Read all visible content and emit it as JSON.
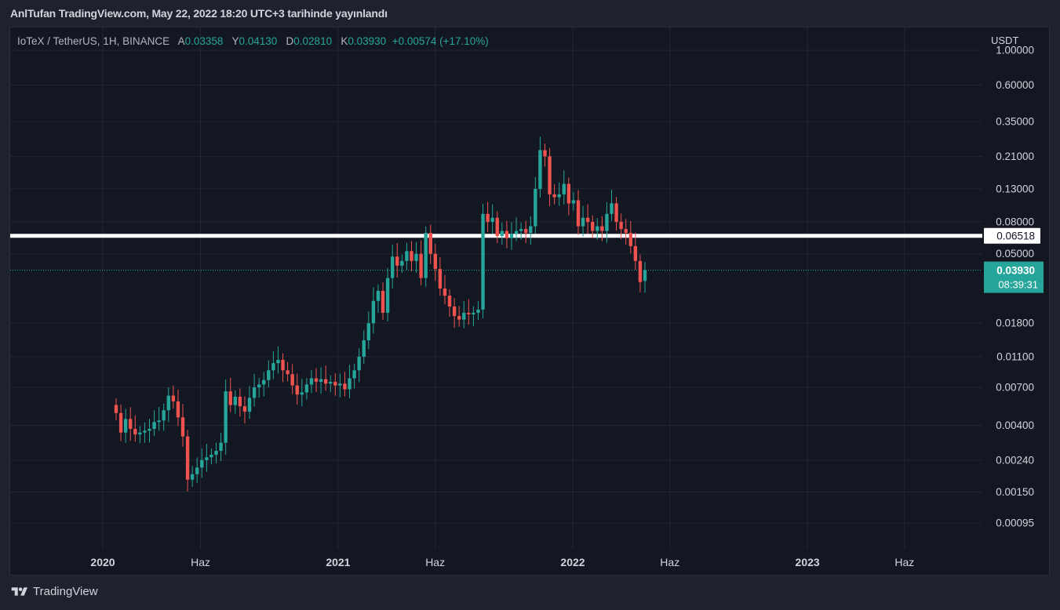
{
  "caption": "AnlTufan TradingView.com, May 22, 2022 18:20 UTC+3 tarihinde yayınlandı",
  "legend": {
    "symbol": "IoTeX / TetherUS, 1H, BINANCE",
    "open_label": "A",
    "open": "0.03358",
    "high_label": "Y",
    "high": "0.04130",
    "low_label": "D",
    "low": "0.02810",
    "close_label": "K",
    "close": "0.03930",
    "change": "+0.00574 (+17.10%)"
  },
  "brand": "TradingView",
  "colors": {
    "up": "#26a69a",
    "down": "#ef5350",
    "background": "#131722",
    "grid": "#232733",
    "text": "#d1d4dc",
    "hline": "#ffffff"
  },
  "chart_data": {
    "type": "candlestick",
    "scale": "log",
    "y_axis_unit": "USDT",
    "ylim": [
      0.00065,
      1.4
    ],
    "y_ticks": [
      "1.00000",
      "0.60000",
      "0.35000",
      "0.21000",
      "0.13000",
      "0.08000",
      "0.05000",
      "0.01800",
      "0.01100",
      "0.00700",
      "0.00400",
      "0.00240",
      "0.00150",
      "0.00095"
    ],
    "x_ticks": [
      {
        "date": "2020-01-01",
        "label": "2020"
      },
      {
        "date": "2020-06-01",
        "label": "Haz"
      },
      {
        "date": "2021-01-01",
        "label": "2021"
      },
      {
        "date": "2021-06-01",
        "label": "Haz"
      },
      {
        "date": "2022-01-01",
        "label": "2022"
      },
      {
        "date": "2022-06-01",
        "label": "Haz"
      },
      {
        "date": "2023-01-01",
        "label": "2023"
      },
      {
        "date": "2023-06-01",
        "label": "Haz"
      }
    ],
    "xlim": [
      "2019-08-10",
      "2023-09-30"
    ],
    "horizontal_line": {
      "value": "0.06518"
    },
    "last_price": {
      "value": "0.03930",
      "countdown": "08:39:31"
    },
    "series": [
      [
        0.0054,
        0.0048
      ],
      [
        0.0048,
        0.0036
      ],
      [
        0.0036,
        0.0044
      ],
      [
        0.0044,
        0.0038
      ],
      [
        0.0038,
        0.0035
      ],
      [
        0.0035,
        0.0036
      ],
      [
        0.0036,
        0.0037
      ],
      [
        0.0037,
        0.0038
      ],
      [
        0.0038,
        0.0042
      ],
      [
        0.0042,
        0.0043
      ],
      [
        0.0043,
        0.005
      ],
      [
        0.005,
        0.0062
      ],
      [
        0.0062,
        0.0057
      ],
      [
        0.0057,
        0.0045
      ],
      [
        0.0045,
        0.0034
      ],
      [
        0.0034,
        0.0018
      ],
      [
        0.0018,
        0.00195
      ],
      [
        0.00195,
        0.00215
      ],
      [
        0.00215,
        0.0024
      ],
      [
        0.0024,
        0.0025
      ],
      [
        0.0025,
        0.0026
      ],
      [
        0.0026,
        0.00275
      ],
      [
        0.00275,
        0.0031
      ],
      [
        0.0031,
        0.0066
      ],
      [
        0.0066,
        0.0054
      ],
      [
        0.0054,
        0.0061
      ],
      [
        0.0061,
        0.0053
      ],
      [
        0.0053,
        0.0049
      ],
      [
        0.0049,
        0.006
      ],
      [
        0.006,
        0.007
      ],
      [
        0.007,
        0.0073
      ],
      [
        0.0073,
        0.0078
      ],
      [
        0.0078,
        0.009
      ],
      [
        0.009,
        0.01
      ],
      [
        0.01,
        0.0105
      ],
      [
        0.0105,
        0.009
      ],
      [
        0.009,
        0.0085
      ],
      [
        0.0085,
        0.0072
      ],
      [
        0.0072,
        0.0063
      ],
      [
        0.0063,
        0.0065
      ],
      [
        0.0065,
        0.0073
      ],
      [
        0.0073,
        0.008
      ],
      [
        0.008,
        0.0076
      ],
      [
        0.0076,
        0.0079
      ],
      [
        0.0079,
        0.0074
      ],
      [
        0.0074,
        0.0076
      ],
      [
        0.0076,
        0.0072
      ],
      [
        0.0072,
        0.0074
      ],
      [
        0.0074,
        0.0068
      ],
      [
        0.0068,
        0.008
      ],
      [
        0.008,
        0.009
      ],
      [
        0.009,
        0.011
      ],
      [
        0.011,
        0.014
      ],
      [
        0.014,
        0.018
      ],
      [
        0.018,
        0.025
      ],
      [
        0.025,
        0.029
      ],
      [
        0.029,
        0.021
      ],
      [
        0.021,
        0.035
      ],
      [
        0.035,
        0.048
      ],
      [
        0.048,
        0.042
      ],
      [
        0.042,
        0.045
      ],
      [
        0.045,
        0.052
      ],
      [
        0.052,
        0.045
      ],
      [
        0.045,
        0.05
      ],
      [
        0.05,
        0.035
      ],
      [
        0.035,
        0.068
      ],
      [
        0.068,
        0.05
      ],
      [
        0.05,
        0.04
      ],
      [
        0.04,
        0.03
      ],
      [
        0.03,
        0.027
      ],
      [
        0.027,
        0.023
      ],
      [
        0.023,
        0.02
      ],
      [
        0.02,
        0.019
      ],
      [
        0.019,
        0.021
      ],
      [
        0.021,
        0.0205
      ],
      [
        0.0205,
        0.021
      ],
      [
        0.021,
        0.022
      ],
      [
        0.022,
        0.09
      ],
      [
        0.09,
        0.08
      ],
      [
        0.08,
        0.085
      ],
      [
        0.085,
        0.065
      ],
      [
        0.065,
        0.07
      ],
      [
        0.07,
        0.063
      ],
      [
        0.063,
        0.067
      ],
      [
        0.067,
        0.07
      ],
      [
        0.07,
        0.072
      ],
      [
        0.072,
        0.068
      ],
      [
        0.068,
        0.075
      ],
      [
        0.075,
        0.13
      ],
      [
        0.13,
        0.23
      ],
      [
        0.23,
        0.21
      ],
      [
        0.21,
        0.12
      ],
      [
        0.12,
        0.115
      ],
      [
        0.115,
        0.12
      ],
      [
        0.12,
        0.14
      ],
      [
        0.14,
        0.105
      ],
      [
        0.105,
        0.11
      ],
      [
        0.11,
        0.075
      ],
      [
        0.075,
        0.085
      ],
      [
        0.085,
        0.08
      ],
      [
        0.08,
        0.07
      ],
      [
        0.07,
        0.075
      ],
      [
        0.075,
        0.07
      ],
      [
        0.07,
        0.09
      ],
      [
        0.09,
        0.105
      ],
      [
        0.105,
        0.08
      ],
      [
        0.08,
        0.072
      ],
      [
        0.072,
        0.068
      ],
      [
        0.068,
        0.056
      ],
      [
        0.056,
        0.045
      ],
      [
        0.045,
        0.033
      ],
      [
        0.03358,
        0.0393
      ]
    ],
    "wicks": {
      "note": ""
    }
  }
}
